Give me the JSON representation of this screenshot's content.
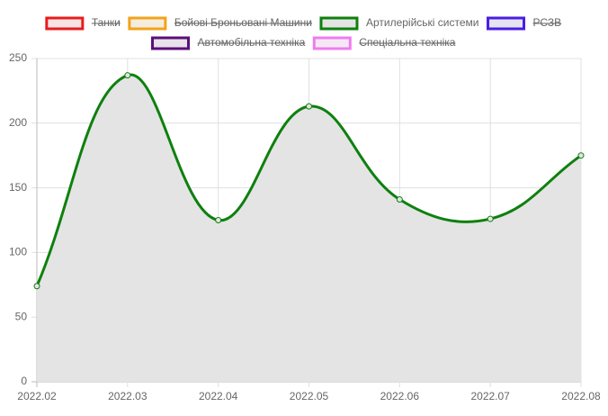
{
  "chart_data": {
    "type": "line",
    "categories": [
      "2022.02",
      "2022.03",
      "2022.04",
      "2022.05",
      "2022.06",
      "2022.07",
      "2022.08"
    ],
    "series": [
      {
        "name": "Танки",
        "color": "#e81c1c",
        "fill": "#f7e3e6",
        "hidden": true
      },
      {
        "name": "Бойові Броньовані Машини",
        "color": "#f2a31a",
        "fill": "#f5ece0",
        "hidden": true
      },
      {
        "name": "Артилерійські системи",
        "color": "#0e800e",
        "fill": "#e4e4e4",
        "values": [
          74,
          237,
          125,
          213,
          141,
          126,
          175
        ]
      },
      {
        "name": "РСЗВ",
        "color": "#4a1ee0",
        "fill": "#e6e4f3",
        "hidden": true
      },
      {
        "name": "Автомобільна техніка",
        "color": "#5a0f7a",
        "fill": "#e8e2ea",
        "hidden": true
      },
      {
        "name": "Спеціальна техніка",
        "color": "#ef7cef",
        "fill": "#f5e8f5",
        "hidden": true
      }
    ],
    "ylim": [
      0,
      250
    ],
    "yticks": [
      0,
      50,
      100,
      150,
      200,
      250
    ],
    "grid": true
  }
}
